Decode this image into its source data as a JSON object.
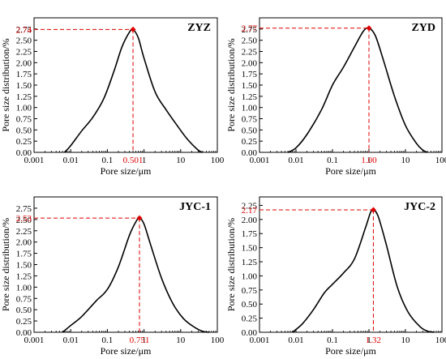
{
  "chart_data": [
    {
      "type": "line",
      "title": "ZYZ",
      "xlabel": "Pore size/μm",
      "ylabel": "Pore size distribution/%",
      "xscale": "log",
      "xlim": [
        0.001,
        100
      ],
      "ylim": [
        0,
        3.0
      ],
      "xticks": [
        "0.001",
        "0.01",
        "0.1",
        "1",
        "10",
        "100"
      ],
      "yticks": [
        "0.00",
        "0.25",
        "0.50",
        "0.75",
        "1.00",
        "1.25",
        "1.50",
        "1.75",
        "2.00",
        "2.25",
        "2.50",
        "2.75"
      ],
      "peak": {
        "x": 0.501,
        "y": 2.74,
        "x_label": "0.501",
        "y_label": "2.74"
      },
      "series": [
        {
          "x": [
            0.0068,
            0.01,
            0.02,
            0.04,
            0.08,
            0.15,
            0.25,
            0.4,
            0.501,
            0.7,
            1.0,
            2.0,
            4.0,
            8.0,
            15.0,
            30.0,
            40.0
          ],
          "values": [
            0.0,
            0.15,
            0.48,
            0.78,
            1.2,
            1.8,
            2.35,
            2.68,
            2.74,
            2.55,
            2.1,
            1.35,
            0.95,
            0.6,
            0.3,
            0.05,
            0.0
          ]
        }
      ]
    },
    {
      "type": "line",
      "title": "ZYD",
      "xlabel": "Pore size/μm",
      "ylabel": "Pore size distribution/%",
      "xscale": "log",
      "xlim": [
        0.001,
        100
      ],
      "ylim": [
        0,
        3.0
      ],
      "xticks": [
        "0.001",
        "0.01",
        "0.1",
        "1",
        "10",
        "100"
      ],
      "yticks": [
        "0.00",
        "0.25",
        "0.50",
        "0.75",
        "1.00",
        "1.25",
        "1.50",
        "1.75",
        "2.00",
        "2.25",
        "2.50",
        "2.75"
      ],
      "peak": {
        "x": 1.0,
        "y": 2.77,
        "x_label": "1.00",
        "y_label": "2.77"
      },
      "series": [
        {
          "x": [
            0.006,
            0.01,
            0.02,
            0.05,
            0.1,
            0.2,
            0.4,
            0.7,
            1.0,
            1.5,
            2.5,
            5.0,
            10.0,
            20.0,
            30.0,
            40.0
          ],
          "values": [
            0.0,
            0.1,
            0.4,
            0.95,
            1.5,
            1.9,
            2.35,
            2.7,
            2.77,
            2.6,
            2.05,
            1.25,
            0.6,
            0.2,
            0.05,
            0.0
          ]
        }
      ]
    },
    {
      "type": "line",
      "title": "JYC-1",
      "xlabel": "Pore size/μm",
      "ylabel": "Pore size distribution/%",
      "xscale": "log",
      "xlim": [
        0.001,
        100
      ],
      "ylim": [
        0,
        3.0
      ],
      "xticks": [
        "0.001",
        "0.01",
        "0.1",
        "1",
        "10",
        "100"
      ],
      "yticks": [
        "0.00",
        "0.25",
        "0.50",
        "0.75",
        "1.00",
        "1.25",
        "1.50",
        "1.75",
        "2.00",
        "2.25",
        "2.50",
        "2.75"
      ],
      "peak": {
        "x": 0.751,
        "y": 2.53,
        "x_label": "0.751",
        "y_label": "2.53"
      },
      "series": [
        {
          "x": [
            0.006,
            0.01,
            0.02,
            0.05,
            0.1,
            0.2,
            0.4,
            0.6,
            0.751,
            1.0,
            1.5,
            3.0,
            6.0,
            12.0,
            25.0,
            40.0,
            60.0
          ],
          "values": [
            0.0,
            0.15,
            0.35,
            0.7,
            0.95,
            1.45,
            2.15,
            2.45,
            2.53,
            2.4,
            1.95,
            1.2,
            0.65,
            0.3,
            0.1,
            0.02,
            0.0
          ]
        }
      ]
    },
    {
      "type": "line",
      "title": "JYC-2",
      "xlabel": "Pore size/μm",
      "ylabel": "Pore size distribution/%",
      "xscale": "log",
      "xlim": [
        0.001,
        100
      ],
      "ylim": [
        0,
        2.4
      ],
      "xticks": [
        "0.001",
        "0.01",
        "0.1",
        "1",
        "10",
        "100"
      ],
      "yticks": [
        "0.00",
        "0.25",
        "0.50",
        "0.75",
        "1.00",
        "1.25",
        "1.50",
        "1.75",
        "2.00",
        "2.25"
      ],
      "peak": {
        "x": 1.32,
        "y": 2.17,
        "x_label": "1.32",
        "y_label": "2.17"
      },
      "series": [
        {
          "x": [
            0.008,
            0.015,
            0.03,
            0.06,
            0.1,
            0.2,
            0.4,
            0.8,
            1.1,
            1.32,
            1.8,
            3.0,
            6.0,
            12.0,
            25.0,
            40.0,
            60.0
          ],
          "values": [
            0.0,
            0.15,
            0.4,
            0.7,
            0.85,
            1.05,
            1.3,
            1.85,
            2.12,
            2.17,
            2.05,
            1.55,
            0.8,
            0.35,
            0.1,
            0.02,
            0.0
          ]
        }
      ]
    }
  ]
}
